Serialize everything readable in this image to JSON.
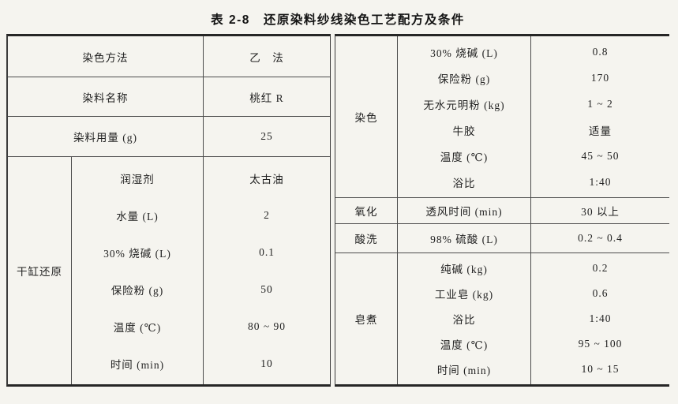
{
  "title": "表 2-8　还原染料纱线染色工艺配方及条件",
  "colors": {
    "ink": "#1d1d1d",
    "paper": "#f5f4ef",
    "rule": "#4c4c4c"
  },
  "left_table": {
    "simple_rows": [
      {
        "label": "染色方法",
        "value": "乙　法"
      },
      {
        "label": "染料名称",
        "value": "桃红 R"
      },
      {
        "label": "染料用量 (g)",
        "value": "25"
      }
    ],
    "section": {
      "name": "干缸还原",
      "rows": [
        {
          "label": "润湿剂",
          "value": "太古油"
        },
        {
          "label": "水量 (L)",
          "value": "2"
        },
        {
          "label": "30% 烧碱 (L)",
          "value": "0.1"
        },
        {
          "label": "保险粉 (g)",
          "value": "50"
        },
        {
          "label": "温度 (℃)",
          "value": "80 ~ 90"
        },
        {
          "label": "时间 (min)",
          "value": "10"
        }
      ]
    }
  },
  "right_table": {
    "sections": [
      {
        "name": "染色",
        "rows": [
          {
            "label": "30% 烧碱 (L)",
            "value": "0.8"
          },
          {
            "label": "保险粉 (g)",
            "value": "170"
          },
          {
            "label": "无水元明粉 (kg)",
            "value": "1 ~ 2"
          },
          {
            "label": "牛胶",
            "value": "适量"
          },
          {
            "label": "温度 (℃)",
            "value": "45 ~ 50"
          },
          {
            "label": "浴比",
            "value": "1:40"
          }
        ]
      },
      {
        "name": "氧化",
        "rows": [
          {
            "label": "透风时间 (min)",
            "value": "30 以上"
          }
        ]
      },
      {
        "name": "酸洗",
        "rows": [
          {
            "label": "98% 硫酸 (L)",
            "value": "0.2 ~ 0.4"
          }
        ]
      },
      {
        "name": "皂煮",
        "rows": [
          {
            "label": "纯碱 (kg)",
            "value": "0.2"
          },
          {
            "label": "工业皂 (kg)",
            "value": "0.6"
          },
          {
            "label": "浴比",
            "value": "1:40"
          },
          {
            "label": "温度 (℃)",
            "value": "95 ~ 100"
          },
          {
            "label": "时间 (min)",
            "value": "10 ~ 15"
          }
        ]
      }
    ]
  }
}
